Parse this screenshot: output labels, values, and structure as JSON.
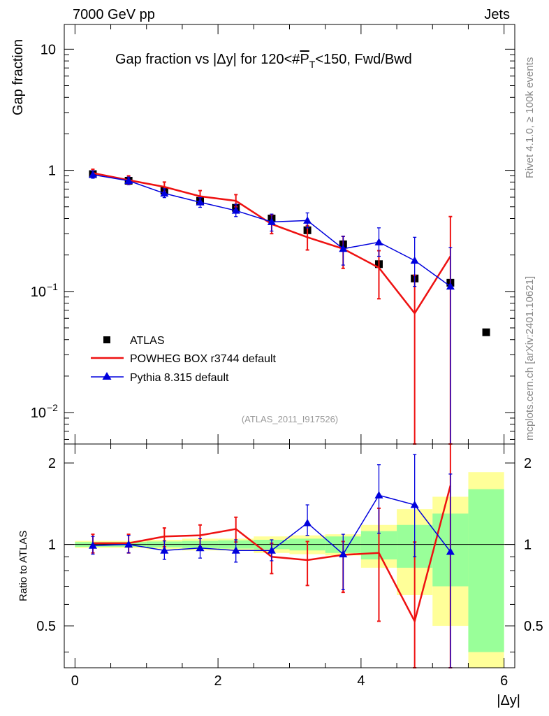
{
  "header": {
    "left": "7000 GeV pp",
    "right": "Jets",
    "side_top": "Rivet 4.1.0, ≥ 100k events",
    "side_bottom": "mcplots.cern.ch [arXiv:2401.10621]"
  },
  "chart_data": {
    "type": "scatter",
    "title": "Gap fraction vs |Δy| for 120<#P_{T}<150, Fwd/Bwd",
    "title_parts": {
      "a": "Gap fraction vs |Δy| for 120<#",
      "b": "P",
      "c": "T",
      "d": "<150, Fwd/Bwd"
    },
    "xlabel": "|Δy|",
    "ylabel": "Gap fraction",
    "ratio_ylabel": "Ratio to ATLAS",
    "xlim": [
      -0.15,
      6.15
    ],
    "ylim": [
      0.0055,
      16
    ],
    "yscale": "log",
    "ratio_ylim": [
      0.35,
      2.35
    ],
    "ratio_yscale": "log",
    "analysis_id": "(ATLAS_2011_I917526)",
    "x_ticks": [
      {
        "v": 0,
        "label": "0"
      },
      {
        "v": 2,
        "label": "2"
      },
      {
        "v": 4,
        "label": "4"
      },
      {
        "v": 6,
        "label": "6"
      }
    ],
    "y_ticks": [
      {
        "v": 10,
        "base": "10",
        "exp": ""
      },
      {
        "v": 1,
        "base": "1",
        "exp": ""
      },
      {
        "v": 0.1,
        "base": "10",
        "exp": "−1"
      },
      {
        "v": 0.01,
        "base": "10",
        "exp": "−2"
      }
    ],
    "ratio_ticks": [
      {
        "v": 2,
        "label": "2"
      },
      {
        "v": 1,
        "label": "1"
      },
      {
        "v": 0.5,
        "label": "0.5"
      }
    ],
    "legend": [
      "ATLAS",
      "POWHEG BOX r3744 default",
      "Pythia 8.315 default"
    ],
    "legend_position": "lower-left",
    "colors": {
      "data": "#000000",
      "powheg": "#ee1111",
      "pythia": "#0000dd",
      "band_outer": "#ffff99",
      "band_inner": "#99ff99"
    },
    "x": [
      0.25,
      0.75,
      1.25,
      1.75,
      2.25,
      2.75,
      3.25,
      3.75,
      4.25,
      4.75,
      5.25,
      5.75
    ],
    "bins": [
      [
        0,
        0.5
      ],
      [
        0.5,
        1
      ],
      [
        1,
        1.5
      ],
      [
        1.5,
        2
      ],
      [
        2,
        2.5
      ],
      [
        2.5,
        3
      ],
      [
        3,
        3.5
      ],
      [
        3.5,
        4
      ],
      [
        4,
        4.5
      ],
      [
        4.5,
        5
      ],
      [
        5,
        5.5
      ],
      [
        5.5,
        6
      ]
    ],
    "series": [
      {
        "name": "ATLAS",
        "values": [
          0.93,
          0.82,
          0.68,
          0.56,
          0.49,
          0.4,
          0.32,
          0.245,
          0.168,
          0.128,
          0.118,
          0.046
        ],
        "rel_err_outer": [
          0.03,
          0.03,
          0.04,
          0.05,
          0.05,
          0.07,
          0.08,
          0.09,
          0.18,
          0.35,
          0.5,
          0.85
        ],
        "rel_err_inner": [
          0.02,
          0.02,
          0.025,
          0.03,
          0.035,
          0.04,
          0.05,
          0.07,
          0.12,
          0.18,
          0.3,
          0.6
        ]
      },
      {
        "name": "POWHEG BOX r3744 default",
        "values": [
          0.95,
          0.83,
          0.73,
          0.61,
          0.56,
          0.36,
          0.28,
          0.225,
          0.157,
          0.066,
          0.195
        ],
        "err_low": [
          0.07,
          0.06,
          0.06,
          0.06,
          0.06,
          0.06,
          0.06,
          0.07,
          0.07,
          0.066,
          0.195
        ],
        "err_high": [
          0.07,
          0.07,
          0.07,
          0.07,
          0.07,
          0.07,
          0.07,
          0.06,
          0.06,
          0.07,
          0.22
        ]
      },
      {
        "name": "Pythia 8.315 default",
        "values": [
          0.92,
          0.82,
          0.645,
          0.545,
          0.465,
          0.375,
          0.385,
          0.225,
          0.255,
          0.18,
          0.11
        ],
        "err_low": [
          0.06,
          0.06,
          0.05,
          0.05,
          0.05,
          0.06,
          0.05,
          0.06,
          0.06,
          0.07,
          0.11
        ],
        "err_high": [
          0.07,
          0.06,
          0.06,
          0.05,
          0.06,
          0.06,
          0.06,
          0.06,
          0.08,
          0.1,
          0.12
        ]
      }
    ],
    "ratios": [
      {
        "name": "POWHEG BOX r3744 default",
        "values": [
          1.01,
          1.01,
          1.07,
          1.08,
          1.14,
          0.9,
          0.875,
          0.915,
          0.93,
          0.52,
          1.65
        ],
        "err_low": [
          0.08,
          0.08,
          0.09,
          0.1,
          0.12,
          0.12,
          0.17,
          0.25,
          0.41,
          0.52,
          1.65
        ],
        "err_high": [
          0.08,
          0.08,
          0.08,
          0.1,
          0.12,
          0.11,
          0.15,
          0.11,
          0.43,
          0.5,
          1.0
        ]
      },
      {
        "name": "Pythia 8.315 default",
        "values": [
          0.99,
          1.0,
          0.95,
          0.97,
          0.95,
          0.95,
          1.2,
          0.92,
          1.52,
          1.4,
          0.94
        ],
        "err_low": [
          0.07,
          0.07,
          0.07,
          0.08,
          0.09,
          0.08,
          0.12,
          0.24,
          0.42,
          0.5,
          0.94
        ],
        "err_high": [
          0.08,
          0.08,
          0.08,
          0.08,
          0.09,
          0.09,
          0.2,
          0.17,
          0.45,
          0.75,
          0.88
        ]
      }
    ]
  }
}
